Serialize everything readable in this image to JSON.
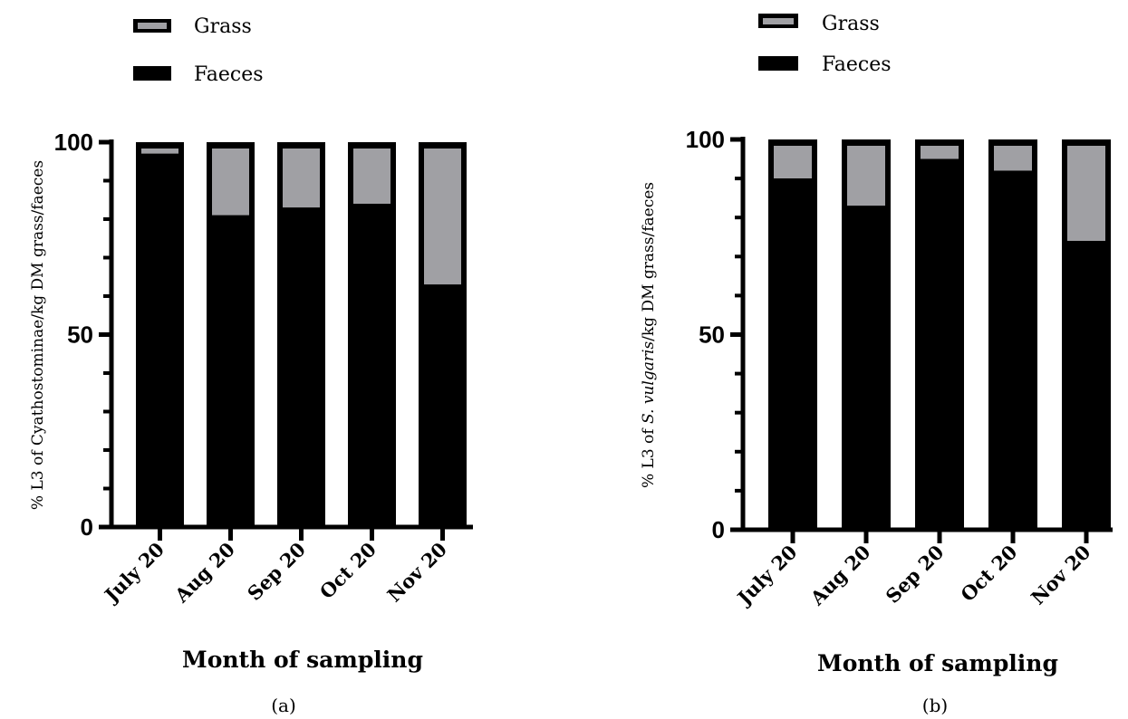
{
  "chart_data": [
    {
      "type": "bar",
      "stacked": true,
      "panel_label": "(a)",
      "xlabel": "Month of sampling",
      "ylabel": "% L3 of Cyathostominae/kg DM grass/faeces",
      "ylim": [
        0,
        100
      ],
      "yticks": [
        "0",
        "50",
        "100"
      ],
      "categories": [
        "July 20",
        "Aug 20",
        "Sep 20",
        "Oct 20",
        "Nov 20"
      ],
      "legend": [
        "Grass",
        "Faeces"
      ],
      "legend_position": "top-left",
      "series": [
        {
          "name": "Faeces",
          "color": "#000000",
          "values": [
            97,
            81,
            83,
            84,
            63
          ]
        },
        {
          "name": "Grass",
          "color": "#a0a0a4",
          "values": [
            3,
            19,
            17,
            16,
            37
          ]
        }
      ]
    },
    {
      "type": "bar",
      "stacked": true,
      "panel_label": "(b)",
      "xlabel": "Month of sampling",
      "ylabel_prefix": "% L3 of ",
      "ylabel_italic": "S. vulgaris",
      "ylabel_suffix": "/kg DM grass/faeces",
      "ylim": [
        0,
        100
      ],
      "yticks": [
        "0",
        "50",
        "100"
      ],
      "categories": [
        "July 20",
        "Aug 20",
        "Sep 20",
        "Oct 20",
        "Nov 20"
      ],
      "legend": [
        "Grass",
        "Faeces"
      ],
      "legend_position": "top-left",
      "series": [
        {
          "name": "Faeces",
          "color": "#000000",
          "values": [
            90,
            83,
            95,
            92,
            74
          ]
        },
        {
          "name": "Grass",
          "color": "#a0a0a4",
          "values": [
            10,
            17,
            5,
            8,
            26
          ]
        }
      ]
    }
  ]
}
